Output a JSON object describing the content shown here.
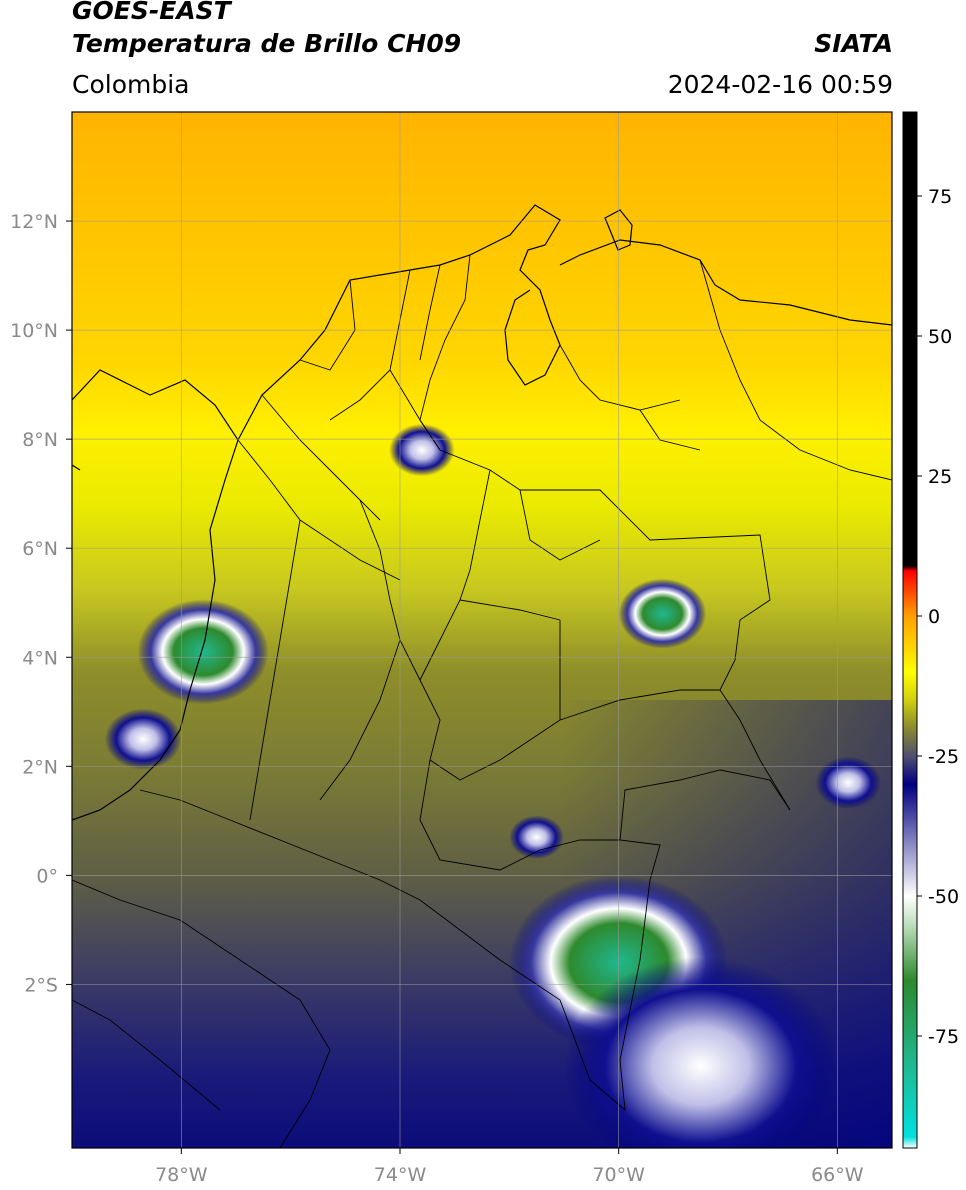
{
  "header": {
    "satellite": "GOES-EAST",
    "product": "Temperatura de Brillo CH09",
    "region": "Colombia",
    "organization": "SIATA",
    "datetime": "2024-02-16 00:59"
  },
  "map": {
    "lon_range": [
      -80,
      -65
    ],
    "lat_range": [
      -5,
      14
    ],
    "grid": true,
    "lon_ticks": [
      {
        "value": -78,
        "label": "78°W"
      },
      {
        "value": -74,
        "label": "74°W"
      },
      {
        "value": -70,
        "label": "70°W"
      },
      {
        "value": -66,
        "label": "66°W"
      }
    ],
    "lat_ticks": [
      {
        "value": 12,
        "label": "12°N"
      },
      {
        "value": 10,
        "label": "10°N"
      },
      {
        "value": 8,
        "label": "8°N"
      },
      {
        "value": 6,
        "label": "6°N"
      },
      {
        "value": 4,
        "label": "4°N"
      },
      {
        "value": 2,
        "label": "2°N"
      },
      {
        "value": 0,
        "label": "0°"
      },
      {
        "value": -2,
        "label": "2°S"
      }
    ],
    "clouds": [
      {
        "lon": -77.6,
        "lat": 4.1,
        "size": 1.2,
        "level": "cold"
      },
      {
        "lon": -78.7,
        "lat": 2.5,
        "size": 0.7,
        "level": "mid"
      },
      {
        "lon": -73.6,
        "lat": 7.8,
        "size": 0.6,
        "level": "mid"
      },
      {
        "lon": -69.2,
        "lat": 4.8,
        "size": 0.8,
        "level": "cold"
      },
      {
        "lon": -70.0,
        "lat": -1.6,
        "size": 2.0,
        "level": "cold"
      },
      {
        "lon": -68.5,
        "lat": -3.5,
        "size": 2.5,
        "level": "mid"
      },
      {
        "lon": -71.5,
        "lat": 0.7,
        "size": 0.5,
        "level": "mid"
      },
      {
        "lon": -65.8,
        "lat": 1.7,
        "size": 0.6,
        "level": "mid"
      }
    ]
  },
  "colorbar": {
    "range": [
      -95,
      90
    ],
    "ticks": [
      {
        "value": 75,
        "label": "75"
      },
      {
        "value": 50,
        "label": "50"
      },
      {
        "value": 25,
        "label": "25"
      },
      {
        "value": 0,
        "label": "0"
      },
      {
        "value": -25,
        "label": "-25"
      },
      {
        "value": -50,
        "label": "-50"
      },
      {
        "value": -75,
        "label": "-75"
      }
    ],
    "stops": [
      {
        "value": -95,
        "color": "#ffffff"
      },
      {
        "value": -93,
        "color": "#00e0e0"
      },
      {
        "value": -80,
        "color": "#20b890"
      },
      {
        "value": -65,
        "color": "#2e8a2e"
      },
      {
        "value": -55,
        "color": "#c0e0c0"
      },
      {
        "value": -50,
        "color": "#ffffff"
      },
      {
        "value": -40,
        "color": "#8080c0"
      },
      {
        "value": -30,
        "color": "#000080"
      },
      {
        "value": -25,
        "color": "#505070"
      },
      {
        "value": -20,
        "color": "#8a8a30"
      },
      {
        "value": -15,
        "color": "#d0d010"
      },
      {
        "value": -10,
        "color": "#ffff00"
      },
      {
        "value": 0,
        "color": "#ffa000"
      },
      {
        "value": 8,
        "color": "#ff0000"
      },
      {
        "value": 9,
        "color": "#000000"
      },
      {
        "value": 90,
        "color": "#000000"
      }
    ]
  }
}
